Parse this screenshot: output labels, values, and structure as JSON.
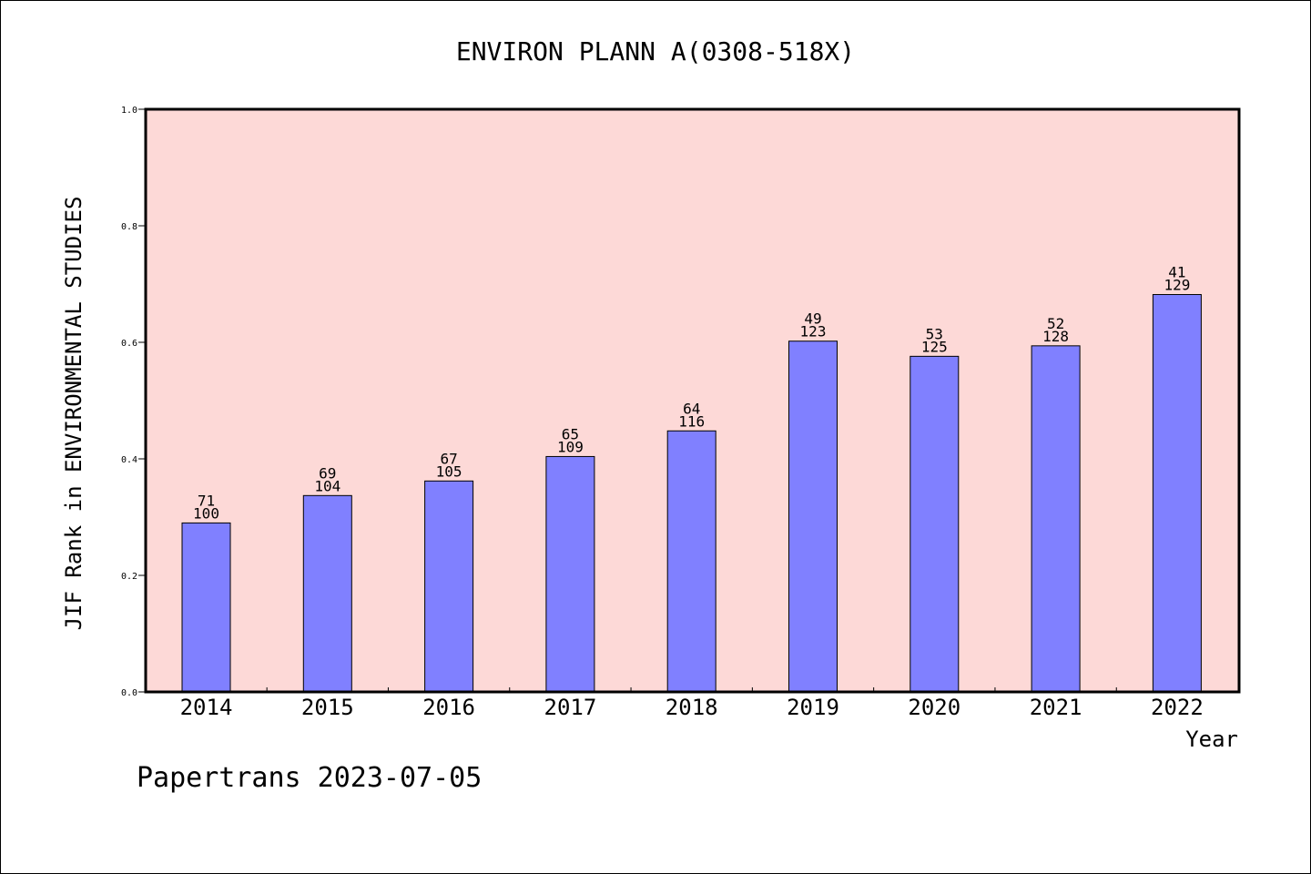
{
  "chart_data": {
    "type": "bar",
    "title": "ENVIRON PLANN A(0308-518X)",
    "xlabel": "Year",
    "ylabel": "JIF Rank in ENVIRONMENTAL STUDIES",
    "ylim": [
      0,
      1.0
    ],
    "yticks": [
      "0.0",
      "0.2",
      "0.4",
      "0.6",
      "0.8",
      "1.0"
    ],
    "categories": [
      "2014",
      "2015",
      "2016",
      "2017",
      "2018",
      "2019",
      "2020",
      "2021",
      "2022"
    ],
    "values": [
      0.29,
      0.337,
      0.362,
      0.404,
      0.448,
      0.602,
      0.576,
      0.594,
      0.682
    ],
    "rank_labels": [
      "71",
      "69",
      "67",
      "65",
      "64",
      "49",
      "53",
      "52",
      "41"
    ],
    "total_labels": [
      "100",
      "104",
      "105",
      "109",
      "116",
      "123",
      "125",
      "128",
      "129"
    ],
    "grid": false,
    "colors": {
      "plot_background": "#fdd9d7",
      "bar": "#8080ff",
      "axis": "#000000"
    }
  },
  "footer": {
    "credit": "Papertrans 2023-07-05"
  }
}
